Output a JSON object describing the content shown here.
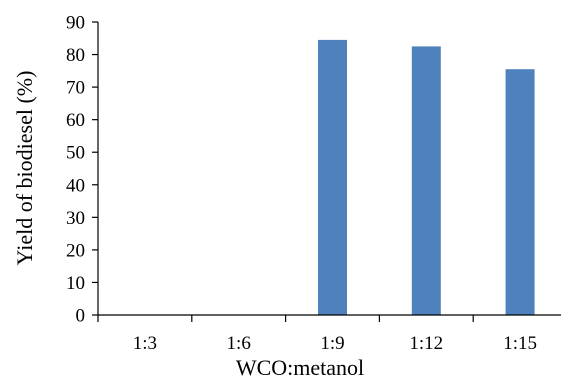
{
  "chart_data": {
    "type": "bar",
    "categories": [
      "1:3",
      "1:6",
      "1:9",
      "1:12",
      "1:15"
    ],
    "values": [
      0,
      0,
      84.5,
      82.5,
      75.5
    ],
    "xlabel": "WCO:metanol",
    "ylabel": "Yield of biodiesel (%)",
    "ylim": [
      0,
      90
    ],
    "yticks": [
      0,
      10,
      20,
      30,
      40,
      50,
      60,
      70,
      80,
      90
    ],
    "bar_color": "#4f81bd",
    "grid": false,
    "legend": "none"
  }
}
